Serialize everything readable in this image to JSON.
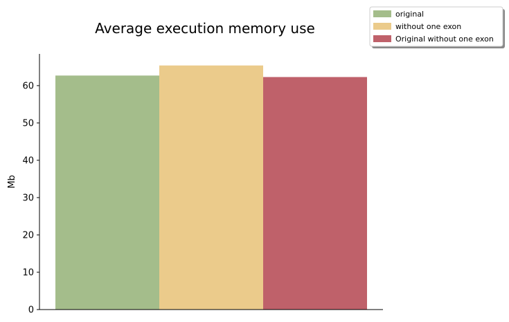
{
  "chart_data": {
    "type": "bar",
    "title": "Average execution memory use",
    "xlabel": "",
    "ylabel": "Mb",
    "ylim": [
      0,
      68.5
    ],
    "yticks": [
      0,
      10,
      20,
      30,
      40,
      50,
      60
    ],
    "grid": false,
    "legend_position": "top-right",
    "series": [
      {
        "name": "original",
        "value": 62.7,
        "color": "#a4bd8b"
      },
      {
        "name": "without one exon",
        "value": 65.4,
        "color": "#ebcb8b"
      },
      {
        "name": "Original without one exon",
        "value": 62.3,
        "color": "#bf616a"
      }
    ]
  }
}
